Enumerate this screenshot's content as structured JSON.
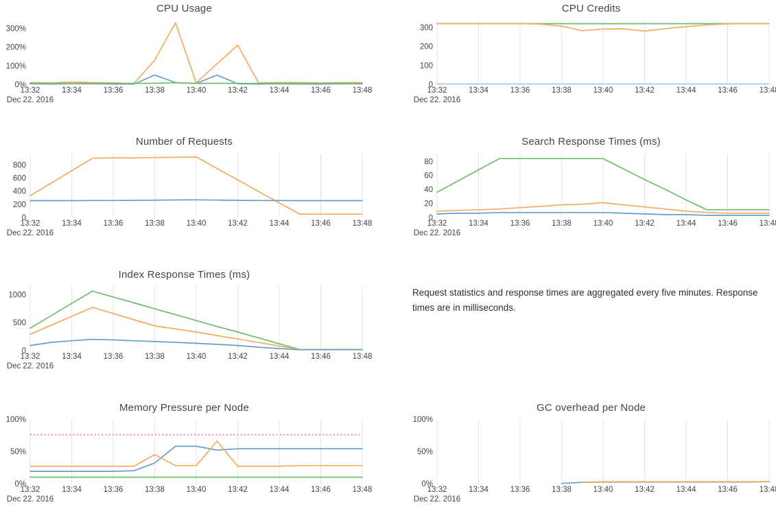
{
  "note": {
    "text": "Request statistics and response times are aggregated every five minutes. Response times are in milliseconds."
  },
  "colors": {
    "blue": "#639fce",
    "orange": "#f5aa60",
    "green": "#6cbd6c",
    "threshold_red": "#ec8590",
    "gridline": "#e4e4e4",
    "axis_text": "#444444"
  },
  "chart_data": {
    "type": "line",
    "x_axis": {
      "tick_labels": [
        "13:32",
        "13:34",
        "13:36",
        "13:38",
        "13:40",
        "13:42",
        "13:44",
        "13:46",
        "13:48"
      ],
      "tick_minutes": [
        32,
        34,
        36,
        38,
        40,
        42,
        44,
        46,
        48
      ],
      "date_label": "Dec 22. 2016",
      "range": [
        32,
        48
      ],
      "sample_minutes": [
        32,
        33,
        34,
        35,
        36,
        37,
        38,
        39,
        40,
        41,
        42,
        43,
        44,
        45,
        46,
        47,
        48
      ]
    },
    "charts": [
      {
        "id": "cpu-usage",
        "title": "CPU Usage",
        "show_grid": false,
        "ylim": [
          0,
          345
        ],
        "y_tick_values": [
          0,
          100,
          200,
          300
        ],
        "y_tick_labels": [
          "0%",
          "100%",
          "200%",
          "300%"
        ],
        "series": [
          {
            "name": "orange",
            "color": "#f5aa60",
            "y": [
              10,
              8,
              13,
              10,
              8,
              5,
              130,
              330,
              8,
              110,
              210,
              8,
              10,
              10,
              8,
              10,
              10
            ]
          },
          {
            "name": "blue",
            "color": "#639fce",
            "y": [
              3,
              2,
              4,
              3,
              2,
              2,
              50,
              10,
              5,
              50,
              3,
              2,
              3,
              2,
              2,
              3,
              3
            ]
          },
          {
            "name": "green",
            "color": "#6cbd6c",
            "y": [
              5,
              5,
              5,
              5,
              5,
              5,
              6,
              8,
              5,
              6,
              5,
              5,
              5,
              5,
              5,
              5,
              5
            ]
          }
        ]
      },
      {
        "id": "cpu-credits",
        "title": "CPU Credits",
        "show_grid": true,
        "ylim": [
          0,
          340
        ],
        "y_tick_values": [
          0,
          100,
          200,
          300
        ],
        "y_tick_labels": [
          "0",
          "100",
          "200",
          "300"
        ],
        "series": [
          {
            "name": "green",
            "color": "#6cbd6c",
            "y": [
              320,
              320,
              320,
              320,
              320,
              320,
              320,
              320,
              320,
              320,
              320,
              320,
              320,
              320,
              320,
              320,
              320
            ]
          },
          {
            "name": "orange",
            "color": "#f5aa60",
            "y": [
              320,
              320,
              320,
              320,
              320,
              318,
              307,
              283,
              292,
              293,
              281,
              294,
              304,
              314,
              319,
              320,
              320
            ]
          },
          {
            "name": "blue",
            "color": "#a9c9e2",
            "y": [
              2,
              2,
              2,
              2,
              2,
              2,
              2,
              2,
              2,
              2,
              2,
              2,
              2,
              2,
              2,
              2,
              2
            ]
          }
        ]
      },
      {
        "id": "number-of-requests",
        "title": "Number of Requests",
        "show_grid": true,
        "ylim": [
          0,
          980
        ],
        "y_tick_values": [
          0,
          200,
          400,
          600,
          800
        ],
        "y_tick_labels": [
          "0",
          "200",
          "400",
          "600",
          "800"
        ],
        "series": [
          {
            "name": "orange",
            "color": "#f5aa60",
            "y": [
              330,
              520,
              710,
              900,
              905,
              905,
              910,
              915,
              920,
              745,
              570,
              395,
              220,
              50,
              50,
              50,
              50
            ]
          },
          {
            "name": "blue",
            "color": "#639fce",
            "y": [
              255,
              255,
              255,
              257,
              258,
              260,
              263,
              266,
              268,
              264,
              260,
              258,
              256,
              255,
              255,
              255,
              255
            ]
          }
        ]
      },
      {
        "id": "search-response-times",
        "title": "Search Response Times (ms)",
        "show_grid": true,
        "ylim": [
          0,
          92
        ],
        "y_tick_values": [
          0,
          20,
          40,
          60,
          80
        ],
        "y_tick_labels": [
          "0",
          "20",
          "40",
          "60",
          "80"
        ],
        "series": [
          {
            "name": "green",
            "color": "#6cbd6c",
            "y": [
              36,
              52,
              68,
              84,
              84,
              84,
              84,
              84,
              84,
              69,
              54,
              40,
              25,
              11,
              11,
              11,
              11
            ]
          },
          {
            "name": "orange",
            "color": "#f5aa60",
            "y": [
              9,
              10,
              11,
              12,
              14,
              16,
              18,
              19,
              21,
              18,
              15,
              12,
              9,
              7,
              6,
              6,
              6
            ]
          },
          {
            "name": "blue",
            "color": "#639fce",
            "y": [
              5,
              6,
              6,
              7,
              7,
              7,
              7,
              7,
              7,
              6,
              5,
              4,
              4,
              3,
              3,
              3,
              3
            ]
          }
        ]
      },
      {
        "id": "index-response-times",
        "title": "Index Response Times (ms)",
        "show_grid": true,
        "ylim": [
          0,
          1150
        ],
        "y_tick_values": [
          0,
          500,
          1000
        ],
        "y_tick_labels": [
          "0",
          "500",
          "1000"
        ],
        "series": [
          {
            "name": "green",
            "color": "#6cbd6c",
            "y": [
              400,
              620,
              840,
              1060,
              955,
              850,
              745,
              640,
              535,
              430,
              330,
              225,
              120,
              20,
              20,
              20,
              20
            ]
          },
          {
            "name": "orange",
            "color": "#f5aa60",
            "y": [
              290,
              450,
              610,
              770,
              660,
              550,
              440,
              385,
              330,
              268,
              205,
              143,
              80,
              20,
              20,
              20,
              20
            ]
          },
          {
            "name": "blue",
            "color": "#639fce",
            "y": [
              90,
              145,
              175,
              200,
              190,
              175,
              160,
              145,
              130,
              110,
              90,
              60,
              35,
              15,
              15,
              15,
              15
            ]
          }
        ]
      },
      {
        "id": "memory-pressure-per-node",
        "title": "Memory Pressure per Node",
        "show_grid": true,
        "ylim": [
          0,
          100
        ],
        "y_tick_values": [
          0,
          50,
          100
        ],
        "y_tick_labels": [
          "0%",
          "50%",
          "100%"
        ],
        "threshold": {
          "y": 76,
          "color": "#ec8590",
          "style": "dotted"
        },
        "series": [
          {
            "name": "blue",
            "color": "#639fce",
            "y": [
              19,
              19,
              19,
              19,
              19,
              20,
              32,
              58,
              58,
              52,
              54,
              54,
              54,
              54,
              54,
              54,
              54
            ]
          },
          {
            "name": "orange",
            "color": "#f5aa60",
            "y": [
              27,
              27,
              27,
              27,
              27,
              27,
              45,
              28,
              28,
              66,
              27,
              27,
              27,
              28,
              28,
              28,
              28
            ]
          },
          {
            "name": "green",
            "color": "#6cbd6c",
            "y": [
              10,
              10,
              10,
              10,
              10,
              10,
              10,
              10,
              10,
              10,
              10,
              10,
              10,
              10,
              10,
              10,
              10
            ]
          }
        ]
      },
      {
        "id": "gc-overhead-per-node",
        "title": "GC overhead per Node",
        "show_grid": true,
        "ylim": [
          0,
          100
        ],
        "y_tick_values": [
          0,
          50,
          100
        ],
        "y_tick_labels": [
          "0%",
          "50%",
          "100%"
        ],
        "series": [
          {
            "name": "blue",
            "color": "#639fce",
            "x": [
              38,
              39,
              40,
              41,
              42,
              43,
              44,
              45,
              46,
              47,
              48
            ],
            "y": [
              0.3,
              2,
              2.3,
              2.5,
              2.5,
              2.5,
              2.5,
              2.5,
              2.5,
              2.5,
              3
            ]
          },
          {
            "name": "orange",
            "color": "#f5aa60",
            "x": [
              39,
              40,
              41,
              42,
              43,
              44,
              45,
              46,
              47,
              48
            ],
            "y": [
              2.2,
              2.8,
              3,
              3,
              3,
              3,
              3,
              3,
              3,
              3.2
            ]
          }
        ]
      }
    ]
  }
}
